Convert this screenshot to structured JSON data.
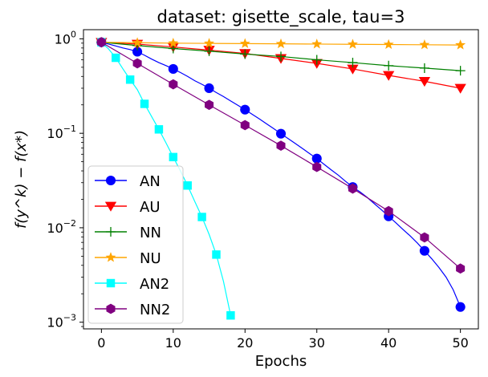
{
  "chart_data": {
    "type": "line",
    "title": "dataset: gisette_scale, tau=3",
    "xlabel": "Epochs",
    "ylabel": "f(y^k) − f(x*)",
    "yscale": "log",
    "xlim": [
      -2.5,
      52.5
    ],
    "ylim": [
      0.00085,
      1.25
    ],
    "x_ticks": [
      0,
      10,
      20,
      30,
      40,
      50
    ],
    "y_ticks": [
      {
        "value": 1,
        "base": "10",
        "exp": "0"
      },
      {
        "value": 0.1,
        "base": "10",
        "exp": "−1"
      },
      {
        "value": 0.01,
        "base": "10",
        "exp": "−2"
      },
      {
        "value": 0.001,
        "base": "10",
        "exp": "−3"
      }
    ],
    "grid": false,
    "legend_position": "lower-left",
    "series": [
      {
        "name": "AN",
        "color": "#0000ff",
        "marker": "circle",
        "x": [
          0,
          1,
          2,
          3,
          4,
          5,
          6,
          7,
          8,
          9,
          10,
          11,
          12,
          13,
          14,
          15,
          16,
          17,
          18,
          19,
          20,
          21,
          22,
          23,
          24,
          25,
          26,
          27,
          28,
          29,
          30,
          31,
          32,
          33,
          34,
          35,
          36,
          37,
          38,
          39,
          40,
          41,
          42,
          43,
          44,
          45,
          46,
          47,
          48,
          49,
          50
        ],
        "y": [
          0.92,
          0.88,
          0.84,
          0.8,
          0.77,
          0.73,
          0.67,
          0.61,
          0.56,
          0.52,
          0.48,
          0.44,
          0.4,
          0.36,
          0.33,
          0.3,
          0.27,
          0.245,
          0.22,
          0.198,
          0.178,
          0.159,
          0.142,
          0.126,
          0.112,
          0.099,
          0.088,
          0.078,
          0.069,
          0.061,
          0.054,
          0.047,
          0.041,
          0.036,
          0.031,
          0.027,
          0.024,
          0.021,
          0.018,
          0.0155,
          0.0132,
          0.0113,
          0.0096,
          0.0082,
          0.0069,
          0.0057,
          0.0047,
          0.0038,
          0.003,
          0.0022,
          0.00145
        ],
        "marker_x": [
          0,
          5,
          10,
          15,
          20,
          25,
          30,
          35,
          40,
          45,
          50
        ],
        "marker_y": [
          0.92,
          0.73,
          0.48,
          0.3,
          0.178,
          0.099,
          0.054,
          0.027,
          0.0132,
          0.0057,
          0.00145
        ]
      },
      {
        "name": "AU",
        "color": "#ff0000",
        "marker": "triangle-down",
        "x": [
          0,
          5,
          10,
          15,
          20,
          25,
          30,
          35,
          40,
          45,
          50
        ],
        "y": [
          0.92,
          0.88,
          0.82,
          0.76,
          0.7,
          0.62,
          0.55,
          0.48,
          0.41,
          0.355,
          0.3
        ],
        "marker_x": [
          0,
          5,
          10,
          15,
          20,
          25,
          30,
          35,
          40,
          45,
          50
        ],
        "marker_y": [
          0.92,
          0.88,
          0.82,
          0.76,
          0.7,
          0.62,
          0.55,
          0.48,
          0.41,
          0.355,
          0.3
        ]
      },
      {
        "name": "NN",
        "color": "#008000",
        "marker": "plus",
        "x": [
          0,
          5,
          10,
          15,
          20,
          25,
          30,
          35,
          40,
          45,
          50
        ],
        "y": [
          0.92,
          0.85,
          0.79,
          0.74,
          0.69,
          0.65,
          0.6,
          0.56,
          0.52,
          0.49,
          0.46
        ],
        "marker_x": [
          0,
          5,
          10,
          15,
          20,
          25,
          30,
          35,
          40,
          45,
          50
        ],
        "marker_y": [
          0.92,
          0.85,
          0.79,
          0.74,
          0.69,
          0.65,
          0.6,
          0.56,
          0.52,
          0.49,
          0.46
        ]
      },
      {
        "name": "NU",
        "color": "#ffa500",
        "marker": "star",
        "x": [
          0,
          5,
          10,
          15,
          20,
          25,
          30,
          35,
          40,
          45,
          50
        ],
        "y": [
          0.92,
          0.91,
          0.9,
          0.895,
          0.89,
          0.885,
          0.88,
          0.875,
          0.87,
          0.865,
          0.86
        ],
        "marker_x": [
          0,
          5,
          10,
          15,
          20,
          25,
          30,
          35,
          40,
          45,
          50
        ],
        "marker_y": [
          0.92,
          0.91,
          0.9,
          0.895,
          0.89,
          0.885,
          0.88,
          0.875,
          0.87,
          0.865,
          0.86
        ]
      },
      {
        "name": "AN2",
        "color": "#00ffff",
        "marker": "square",
        "x": [
          0,
          1,
          2,
          3,
          4,
          5,
          6,
          7,
          8,
          9,
          10,
          11,
          12,
          13,
          14,
          15,
          16,
          17,
          18
        ],
        "y": [
          0.92,
          0.78,
          0.63,
          0.48,
          0.37,
          0.29,
          0.205,
          0.15,
          0.11,
          0.079,
          0.056,
          0.04,
          0.028,
          0.019,
          0.013,
          0.0085,
          0.0052,
          0.0027,
          0.00118
        ],
        "marker_x": [
          0,
          2,
          4,
          6,
          8,
          10,
          12,
          14,
          16,
          18
        ],
        "marker_y": [
          0.92,
          0.63,
          0.37,
          0.205,
          0.11,
          0.056,
          0.028,
          0.013,
          0.0052,
          0.00118
        ]
      },
      {
        "name": "NN2",
        "color": "#800080",
        "marker": "hexagon",
        "x": [
          0,
          5,
          10,
          15,
          20,
          25,
          30,
          35,
          40,
          45,
          50
        ],
        "y": [
          0.92,
          0.55,
          0.33,
          0.2,
          0.122,
          0.074,
          0.044,
          0.026,
          0.015,
          0.0079,
          0.0037
        ],
        "marker_x": [
          0,
          5,
          10,
          15,
          20,
          25,
          30,
          35,
          40,
          45,
          50
        ],
        "marker_y": [
          0.92,
          0.55,
          0.33,
          0.2,
          0.122,
          0.074,
          0.044,
          0.026,
          0.015,
          0.0079,
          0.0037
        ]
      }
    ]
  }
}
